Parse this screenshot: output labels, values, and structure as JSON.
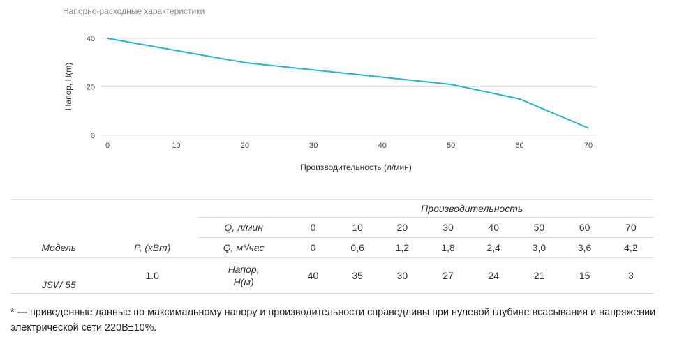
{
  "chart_data": {
    "type": "line",
    "title": "Напорно-расходные характеристики",
    "xlabel": "Производительность (л/мин)",
    "ylabel": "Напор, H(m)",
    "x": [
      0,
      10,
      20,
      30,
      40,
      50,
      60,
      70
    ],
    "series": [
      {
        "values": [
          40,
          35,
          30,
          27,
          24,
          21,
          15,
          3
        ],
        "color": "#2ab3cc"
      }
    ],
    "xticks": [
      "0",
      "10",
      "20",
      "30",
      "40",
      "50",
      "60",
      "70"
    ],
    "yticks": [
      "0",
      "20",
      "40"
    ],
    "xlim": [
      0,
      70
    ],
    "ylim": [
      0,
      40
    ],
    "grid": "horizontal"
  },
  "table": {
    "group_header": "Производительность",
    "q_lmin_label": "Q, л/мин",
    "q_m3_label": "Q, м³/час",
    "model_label": "Модель",
    "power_label": "P, (кВт)",
    "head_label_1": "Напор,",
    "head_label_2": "H(м)",
    "q_lmin": [
      "0",
      "10",
      "20",
      "30",
      "40",
      "50",
      "60",
      "70"
    ],
    "q_m3": [
      "0",
      "0,6",
      "1,2",
      "1,8",
      "2,4",
      "3,0",
      "3,6",
      "4,2"
    ],
    "model": "JSW 55",
    "power": "1.0",
    "head": [
      "40",
      "35",
      "30",
      "27",
      "24",
      "21",
      "15",
      "3"
    ]
  },
  "footnote": "* — приведенные данные по максимальному напору и производительности справедливы при нулевой глубине всасывания и напряжении электрической сети 220В±10%."
}
